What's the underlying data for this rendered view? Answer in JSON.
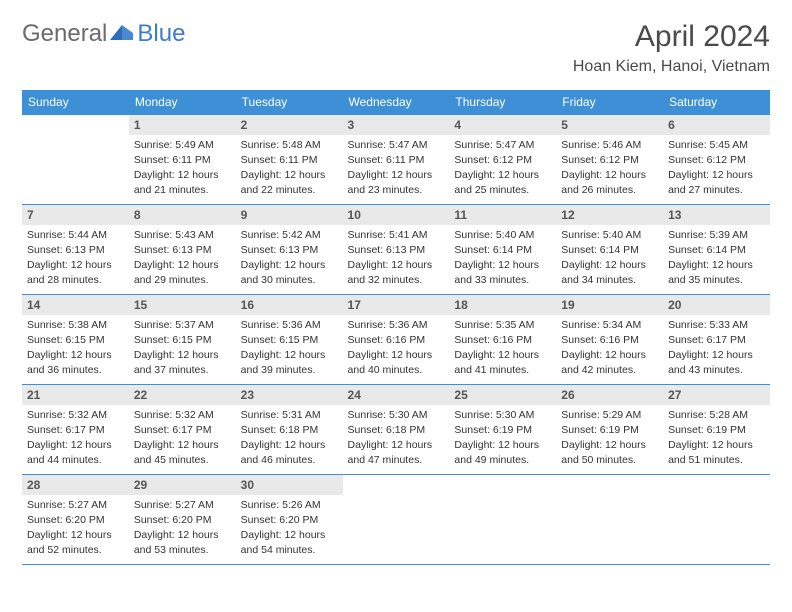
{
  "logo": {
    "text1": "General",
    "text2": "Blue"
  },
  "title": "April 2024",
  "location": "Hoan Kiem, Hanoi, Vietnam",
  "colors": {
    "headerBg": "#3d8fd6",
    "borderColor": "#3d8fd6",
    "dayNumBg": "#e9e9e9",
    "textColor": "#333333",
    "titleColor": "#4a4a4a"
  },
  "daysOfWeek": [
    "Sunday",
    "Monday",
    "Tuesday",
    "Wednesday",
    "Thursday",
    "Friday",
    "Saturday"
  ],
  "startOffset": 1,
  "days": [
    {
      "n": 1,
      "sunrise": "5:49 AM",
      "sunset": "6:11 PM",
      "dl": "12 hours and 21 minutes."
    },
    {
      "n": 2,
      "sunrise": "5:48 AM",
      "sunset": "6:11 PM",
      "dl": "12 hours and 22 minutes."
    },
    {
      "n": 3,
      "sunrise": "5:47 AM",
      "sunset": "6:11 PM",
      "dl": "12 hours and 23 minutes."
    },
    {
      "n": 4,
      "sunrise": "5:47 AM",
      "sunset": "6:12 PM",
      "dl": "12 hours and 25 minutes."
    },
    {
      "n": 5,
      "sunrise": "5:46 AM",
      "sunset": "6:12 PM",
      "dl": "12 hours and 26 minutes."
    },
    {
      "n": 6,
      "sunrise": "5:45 AM",
      "sunset": "6:12 PM",
      "dl": "12 hours and 27 minutes."
    },
    {
      "n": 7,
      "sunrise": "5:44 AM",
      "sunset": "6:13 PM",
      "dl": "12 hours and 28 minutes."
    },
    {
      "n": 8,
      "sunrise": "5:43 AM",
      "sunset": "6:13 PM",
      "dl": "12 hours and 29 minutes."
    },
    {
      "n": 9,
      "sunrise": "5:42 AM",
      "sunset": "6:13 PM",
      "dl": "12 hours and 30 minutes."
    },
    {
      "n": 10,
      "sunrise": "5:41 AM",
      "sunset": "6:13 PM",
      "dl": "12 hours and 32 minutes."
    },
    {
      "n": 11,
      "sunrise": "5:40 AM",
      "sunset": "6:14 PM",
      "dl": "12 hours and 33 minutes."
    },
    {
      "n": 12,
      "sunrise": "5:40 AM",
      "sunset": "6:14 PM",
      "dl": "12 hours and 34 minutes."
    },
    {
      "n": 13,
      "sunrise": "5:39 AM",
      "sunset": "6:14 PM",
      "dl": "12 hours and 35 minutes."
    },
    {
      "n": 14,
      "sunrise": "5:38 AM",
      "sunset": "6:15 PM",
      "dl": "12 hours and 36 minutes."
    },
    {
      "n": 15,
      "sunrise": "5:37 AM",
      "sunset": "6:15 PM",
      "dl": "12 hours and 37 minutes."
    },
    {
      "n": 16,
      "sunrise": "5:36 AM",
      "sunset": "6:15 PM",
      "dl": "12 hours and 39 minutes."
    },
    {
      "n": 17,
      "sunrise": "5:36 AM",
      "sunset": "6:16 PM",
      "dl": "12 hours and 40 minutes."
    },
    {
      "n": 18,
      "sunrise": "5:35 AM",
      "sunset": "6:16 PM",
      "dl": "12 hours and 41 minutes."
    },
    {
      "n": 19,
      "sunrise": "5:34 AM",
      "sunset": "6:16 PM",
      "dl": "12 hours and 42 minutes."
    },
    {
      "n": 20,
      "sunrise": "5:33 AM",
      "sunset": "6:17 PM",
      "dl": "12 hours and 43 minutes."
    },
    {
      "n": 21,
      "sunrise": "5:32 AM",
      "sunset": "6:17 PM",
      "dl": "12 hours and 44 minutes."
    },
    {
      "n": 22,
      "sunrise": "5:32 AM",
      "sunset": "6:17 PM",
      "dl": "12 hours and 45 minutes."
    },
    {
      "n": 23,
      "sunrise": "5:31 AM",
      "sunset": "6:18 PM",
      "dl": "12 hours and 46 minutes."
    },
    {
      "n": 24,
      "sunrise": "5:30 AM",
      "sunset": "6:18 PM",
      "dl": "12 hours and 47 minutes."
    },
    {
      "n": 25,
      "sunrise": "5:30 AM",
      "sunset": "6:19 PM",
      "dl": "12 hours and 49 minutes."
    },
    {
      "n": 26,
      "sunrise": "5:29 AM",
      "sunset": "6:19 PM",
      "dl": "12 hours and 50 minutes."
    },
    {
      "n": 27,
      "sunrise": "5:28 AM",
      "sunset": "6:19 PM",
      "dl": "12 hours and 51 minutes."
    },
    {
      "n": 28,
      "sunrise": "5:27 AM",
      "sunset": "6:20 PM",
      "dl": "12 hours and 52 minutes."
    },
    {
      "n": 29,
      "sunrise": "5:27 AM",
      "sunset": "6:20 PM",
      "dl": "12 hours and 53 minutes."
    },
    {
      "n": 30,
      "sunrise": "5:26 AM",
      "sunset": "6:20 PM",
      "dl": "12 hours and 54 minutes."
    }
  ],
  "labels": {
    "sunrise": "Sunrise:",
    "sunset": "Sunset:",
    "daylight": "Daylight:"
  }
}
